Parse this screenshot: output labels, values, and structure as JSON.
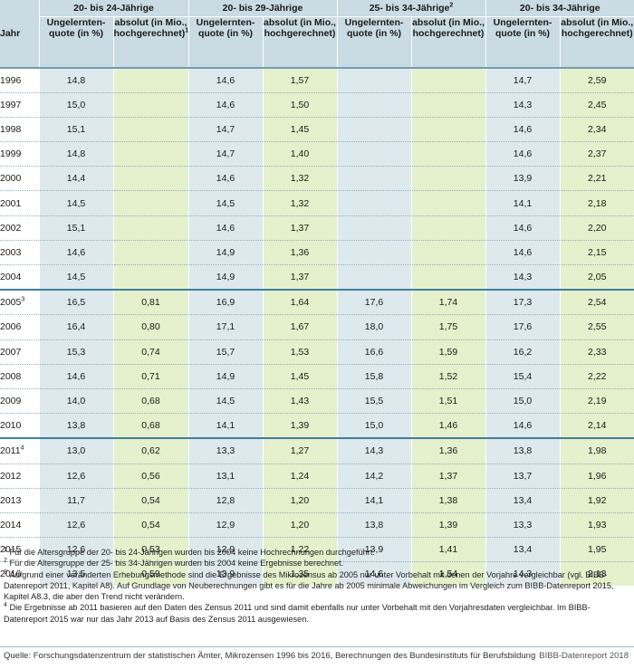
{
  "table": {
    "jahr_label": "Jahr",
    "groups": [
      {
        "label": "20- bis 24-Jährige",
        "sup": ""
      },
      {
        "label": "20- bis 29-Jährige",
        "sup": ""
      },
      {
        "label": "25- bis 34-Jährige",
        "sup": "2"
      },
      {
        "label": "20- bis 34-Jährige",
        "sup": ""
      }
    ],
    "subheaders": {
      "quote": "Ungelernten-quote (in %)",
      "absolut": "absolut (in Mio., hochgerechnet)",
      "absolut_sup_first": "1"
    },
    "rows": [
      {
        "year": "1996",
        "year_sup": "",
        "v": [
          "14,8",
          "",
          "14,6",
          "1,57",
          "",
          "",
          "14,7",
          "2,59"
        ]
      },
      {
        "year": "1997",
        "year_sup": "",
        "v": [
          "15,0",
          "",
          "14,6",
          "1,50",
          "",
          "",
          "14,3",
          "2,45"
        ]
      },
      {
        "year": "1998",
        "year_sup": "",
        "v": [
          "15,1",
          "",
          "14,7",
          "1,45",
          "",
          "",
          "14,6",
          "2,34"
        ]
      },
      {
        "year": "1999",
        "year_sup": "",
        "v": [
          "14,8",
          "",
          "14,7",
          "1,40",
          "",
          "",
          "14,6",
          "2,37"
        ]
      },
      {
        "year": "2000",
        "year_sup": "",
        "v": [
          "14,4",
          "",
          "14,6",
          "1,32",
          "",
          "",
          "13,9",
          "2,21"
        ]
      },
      {
        "year": "2001",
        "year_sup": "",
        "v": [
          "14,5",
          "",
          "14,5",
          "1,32",
          "",
          "",
          "14,1",
          "2,18"
        ]
      },
      {
        "year": "2002",
        "year_sup": "",
        "v": [
          "15,1",
          "",
          "14,6",
          "1,37",
          "",
          "",
          "14,6",
          "2,20"
        ]
      },
      {
        "year": "2003",
        "year_sup": "",
        "v": [
          "14,6",
          "",
          "14,9",
          "1,36",
          "",
          "",
          "14,6",
          "2,15"
        ]
      },
      {
        "year": "2004",
        "year_sup": "",
        "v": [
          "14,5",
          "",
          "14,9",
          "1,37",
          "",
          "",
          "14,3",
          "2,05"
        ]
      },
      {
        "year": "2005",
        "year_sup": "3",
        "v": [
          "16,5",
          "0,81",
          "16,9",
          "1,64",
          "17,6",
          "1,74",
          "17,3",
          "2,54"
        ]
      },
      {
        "year": "2006",
        "year_sup": "",
        "v": [
          "16,4",
          "0,80",
          "17,1",
          "1,67",
          "18,0",
          "1,75",
          "17,6",
          "2,55"
        ]
      },
      {
        "year": "2007",
        "year_sup": "",
        "v": [
          "15,3",
          "0,74",
          "15,7",
          "1,53",
          "16,6",
          "1,59",
          "16,2",
          "2,33"
        ]
      },
      {
        "year": "2008",
        "year_sup": "",
        "v": [
          "14,6",
          "0,71",
          "14,9",
          "1,45",
          "15,8",
          "1,52",
          "15,4",
          "2,22"
        ]
      },
      {
        "year": "2009",
        "year_sup": "",
        "v": [
          "14,0",
          "0,68",
          "14,5",
          "1,43",
          "15,5",
          "1,51",
          "15,0",
          "2,19"
        ]
      },
      {
        "year": "2010",
        "year_sup": "",
        "v": [
          "13,8",
          "0,68",
          "14,1",
          "1,39",
          "15,0",
          "1,46",
          "14,6",
          "2,14"
        ]
      },
      {
        "year": "2011",
        "year_sup": "4",
        "v": [
          "13,0",
          "0,62",
          "13,3",
          "1,27",
          "14,3",
          "1,36",
          "13,8",
          "1,98"
        ]
      },
      {
        "year": "2012",
        "year_sup": "",
        "v": [
          "12,6",
          "0,56",
          "13,1",
          "1,24",
          "14,2",
          "1,37",
          "13,7",
          "1,96"
        ]
      },
      {
        "year": "2013",
        "year_sup": "",
        "v": [
          "11,7",
          "0,54",
          "12,8",
          "1,20",
          "14,1",
          "1,38",
          "13,4",
          "1,92"
        ]
      },
      {
        "year": "2014",
        "year_sup": "",
        "v": [
          "12,6",
          "0,54",
          "12,9",
          "1,20",
          "13,8",
          "1,39",
          "13,3",
          "1,93"
        ]
      },
      {
        "year": "2015",
        "year_sup": "",
        "v": [
          "12,6",
          "0,53",
          "12,9",
          "1,22",
          "13,9",
          "1,41",
          "13,4",
          "1,95"
        ]
      },
      {
        "year": "2016",
        "year_sup": "",
        "v": [
          "13,5",
          "0,59",
          "13,9",
          "1,35",
          "14,6",
          "1,54",
          "14,3",
          "2,13"
        ]
      }
    ]
  },
  "footnotes": [
    {
      "num": "1",
      "text": "Für die Altersgruppe der 20- bis 24-Jährigen wurden bis 2004 keine Hochrechnungen durchgeführt."
    },
    {
      "num": "2",
      "text": "Für die Altersgruppe der 25- bis 34-Jährigen wurden bis 2004 keine Ergebnisse berechnet."
    },
    {
      "num": "3",
      "text": "Aufgrund einer veränderten Erhebungsmethode sind die Ergebnisse des Mikrozensus ab 2005 nur unter Vorbehalt mit denen der Vorjahre vergleichbar (vgl. BIBB-Datenreport 2011, Kapitel A8). Auf Grundlage von Neuberechnungen gibt es für die Jahre ab 2005 minimale Abweichungen im Vergleich zum BIBB-Datenreport 2015, Kapitel A8.3, die aber den Trend nicht verändern."
    },
    {
      "num": "4",
      "text": "Die Ergebnisse ab 2011 basieren auf den Daten des Zensus 2011 und sind damit ebenfalls nur unter Vorbehalt mit den Vorjahresdaten vergleichbar. Im BIBB-Datenreport 2015 war nur das Jahr 2013 auf Basis des Zensus 2011 ausgewiesen."
    }
  ],
  "source": "Quelle: Forschungsdatenzentrum der statistischen Ämter, Mikrozensen 1996 bis 2016, Berechnungen des Bundesinstituts für Berufsbildung",
  "brand": "BIBB-Datenreport 2018"
}
